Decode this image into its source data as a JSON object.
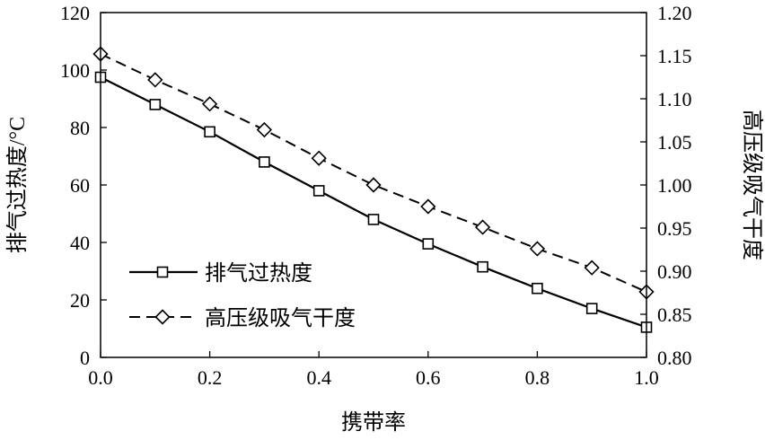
{
  "chart_data": {
    "type": "line",
    "xlabel": "携带率",
    "ylabel_left": "排气过热度/°C",
    "ylabel_right": "高压级吸气干度",
    "xlim": [
      0.0,
      1.0
    ],
    "ylim_left": [
      0,
      120
    ],
    "ylim_right": [
      0.8,
      1.2
    ],
    "x_ticks": [
      "0.0",
      "0.2",
      "0.4",
      "0.6",
      "0.8",
      "1.0"
    ],
    "y_left_ticks": [
      "0",
      "20",
      "40",
      "60",
      "80",
      "100",
      "120"
    ],
    "y_right_ticks": [
      "0.80",
      "0.85",
      "0.90",
      "0.95",
      "1.00",
      "1.05",
      "1.10",
      "1.15",
      "1.20"
    ],
    "legend_position": "lower-left",
    "grid": false,
    "series": [
      {
        "name": "排气过热度",
        "axis": "left",
        "marker": "square",
        "line_style": "solid",
        "x": [
          0.0,
          0.1,
          0.2,
          0.3,
          0.4,
          0.5,
          0.6,
          0.7,
          0.8,
          0.9,
          1.0
        ],
        "values": [
          97.5,
          88,
          78.5,
          68,
          58,
          48,
          39.5,
          31.5,
          24,
          17,
          10.5
        ]
      },
      {
        "name": "高压级吸气干度",
        "axis": "right",
        "marker": "diamond",
        "line_style": "dashed",
        "x": [
          0.0,
          0.1,
          0.2,
          0.3,
          0.4,
          0.5,
          0.6,
          0.7,
          0.8,
          0.9,
          1.0
        ],
        "values": [
          1.152,
          1.122,
          1.094,
          1.064,
          1.031,
          1.0,
          0.975,
          0.951,
          0.926,
          0.904,
          0.876
        ]
      }
    ]
  }
}
